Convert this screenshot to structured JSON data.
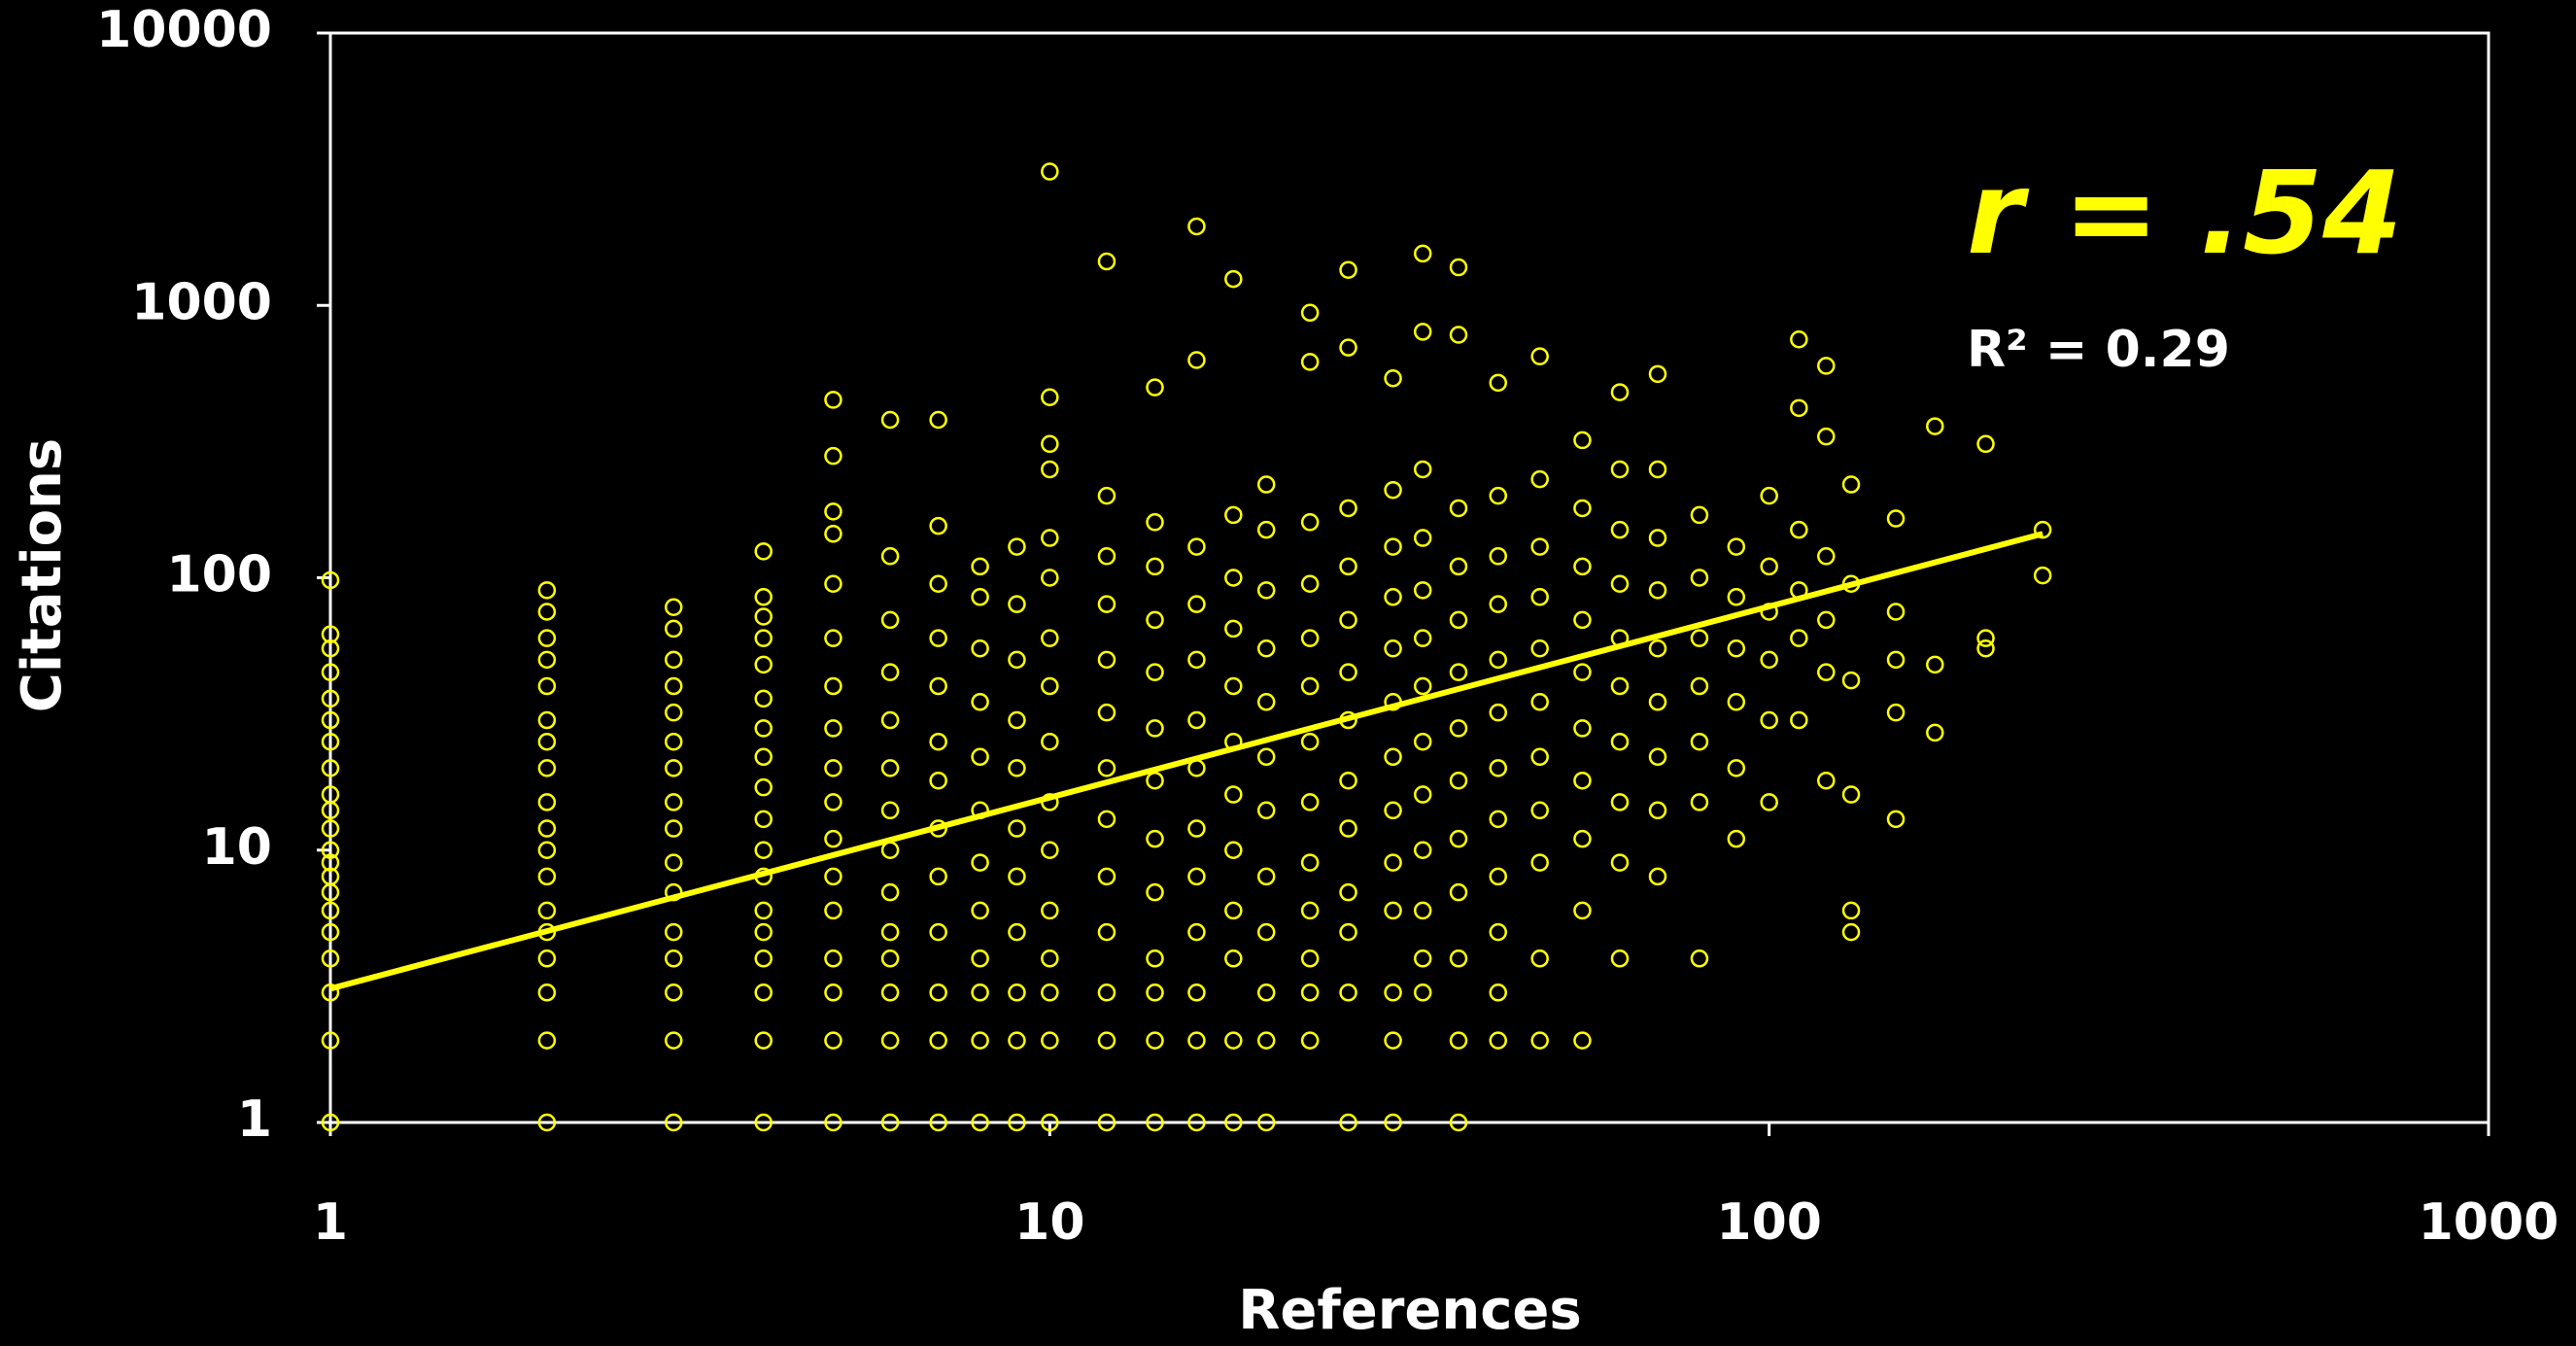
{
  "chart_data": {
    "type": "scatter",
    "x_label": "References",
    "y_label": "Citations",
    "annotations": [
      "r = .54",
      "R² = 0.29"
    ],
    "xscale": "log",
    "yscale": "log",
    "xlim": [
      1,
      1000
    ],
    "ylim": [
      1,
      10000
    ],
    "xticks": [
      1,
      10,
      100,
      1000
    ],
    "yticks": [
      1,
      10,
      100,
      1000,
      10000
    ],
    "color": "#ffff00",
    "x": [
      1,
      1,
      1,
      1,
      1,
      1,
      1,
      1,
      1,
      1,
      1,
      1,
      1,
      1,
      1,
      1,
      1,
      1,
      1,
      1,
      1,
      2,
      2,
      2,
      2,
      2,
      2,
      2,
      2,
      2,
      2,
      2,
      2,
      2,
      2,
      2,
      2,
      2,
      2,
      3,
      3,
      3,
      3,
      3,
      3,
      3,
      3,
      3,
      3,
      3,
      3,
      3,
      3,
      3,
      3,
      4,
      4,
      4,
      4,
      4,
      4,
      4,
      4,
      4,
      4,
      4,
      4,
      4,
      4,
      4,
      4,
      4,
      4,
      5,
      5,
      5,
      5,
      5,
      5,
      5,
      5,
      5,
      5,
      5,
      5,
      5,
      5,
      5,
      5,
      5,
      6,
      6,
      6,
      6,
      6,
      6,
      6,
      6,
      6,
      6,
      6,
      6,
      6,
      6,
      7,
      7,
      7,
      7,
      7,
      7,
      7,
      7,
      7,
      7,
      7,
      7,
      7,
      8,
      8,
      8,
      8,
      8,
      8,
      8,
      8,
      8,
      8,
      8,
      8,
      9,
      9,
      9,
      9,
      9,
      9,
      9,
      9,
      9,
      9,
      9,
      10,
      10,
      10,
      10,
      10,
      10,
      10,
      10,
      10,
      10,
      10,
      10,
      10,
      10,
      10,
      10,
      12,
      12,
      12,
      12,
      12,
      12,
      12,
      12,
      12,
      12,
      12,
      12,
      12,
      14,
      14,
      14,
      14,
      14,
      14,
      14,
      14,
      14,
      14,
      14,
      14,
      14,
      16,
      16,
      16,
      16,
      16,
      16,
      16,
      16,
      16,
      16,
      16,
      16,
      16,
      18,
      18,
      18,
      18,
      18,
      18,
      18,
      18,
      18,
      18,
      18,
      18,
      20,
      20,
      20,
      20,
      20,
      20,
      20,
      20,
      20,
      20,
      20,
      20,
      23,
      23,
      23,
      23,
      23,
      23,
      23,
      23,
      23,
      23,
      23,
      23,
      23,
      26,
      26,
      26,
      26,
      26,
      26,
      26,
      26,
      26,
      26,
      26,
      26,
      26,
      30,
      30,
      30,
      30,
      30,
      30,
      30,
      30,
      30,
      30,
      30,
      30,
      30,
      33,
      33,
      33,
      33,
      33,
      33,
      33,
      33,
      33,
      33,
      33,
      33,
      33,
      37,
      37,
      37,
      37,
      37,
      37,
      37,
      37,
      37,
      37,
      37,
      37,
      37,
      42,
      42,
      42,
      42,
      42,
      42,
      42,
      42,
      42,
      42,
      42,
      42,
      48,
      48,
      48,
      48,
      48,
      48,
      48,
      48,
      48,
      48,
      48,
      55,
      55,
      55,
      55,
      55,
      55,
      55,
      55,
      55,
      55,
      62,
      62,
      62,
      62,
      62,
      62,
      62,
      62,
      62,
      62,
      70,
      70,
      70,
      70,
      70,
      70,
      70,
      70,
      70,
      80,
      80,
      80,
      80,
      80,
      80,
      80,
      90,
      90,
      90,
      90,
      90,
      90,
      100,
      100,
      100,
      100,
      100,
      100,
      110,
      110,
      110,
      110,
      110,
      110,
      120,
      120,
      120,
      120,
      120,
      120,
      130,
      130,
      130,
      130,
      130,
      130,
      150,
      150,
      150,
      150,
      150,
      170,
      170,
      170,
      200,
      200,
      200,
      240,
      240
    ],
    "values": [
      1,
      2,
      3,
      4,
      5,
      6,
      7,
      8,
      9,
      10,
      12,
      14,
      16,
      20,
      25,
      30,
      36,
      45,
      55,
      62,
      98,
      1,
      2,
      3,
      4,
      5,
      6,
      8,
      10,
      12,
      15,
      20,
      25,
      30,
      40,
      50,
      60,
      75,
      90,
      1,
      2,
      3,
      4,
      5,
      7,
      9,
      12,
      15,
      20,
      25,
      32,
      40,
      50,
      65,
      78,
      1,
      2,
      3,
      4,
      5,
      6,
      8,
      10,
      13,
      17,
      22,
      28,
      36,
      48,
      60,
      72,
      85,
      125,
      1,
      2,
      3,
      4,
      6,
      8,
      11,
      15,
      20,
      28,
      40,
      60,
      95,
      145,
      175,
      280,
      450,
      1,
      2,
      3,
      4,
      5,
      7,
      10,
      14,
      20,
      30,
      45,
      70,
      120,
      380,
      1,
      2,
      3,
      5,
      8,
      12,
      18,
      25,
      40,
      60,
      95,
      155,
      380,
      1,
      2,
      3,
      4,
      6,
      9,
      14,
      22,
      35,
      55,
      85,
      110,
      1,
      2,
      3,
      5,
      8,
      12,
      20,
      30,
      50,
      80,
      130,
      1,
      2,
      3,
      4,
      6,
      10,
      15,
      25,
      40,
      60,
      100,
      140,
      250,
      310,
      460,
      3100,
      1,
      2,
      3,
      5,
      8,
      13,
      20,
      32,
      50,
      80,
      120,
      200,
      1450,
      1,
      2,
      3,
      4,
      7,
      11,
      18,
      28,
      45,
      70,
      110,
      160,
      500,
      1,
      2,
      3,
      5,
      8,
      12,
      20,
      30,
      50,
      80,
      130,
      1950,
      630,
      1,
      2,
      4,
      6,
      10,
      16,
      25,
      40,
      65,
      100,
      170,
      1250,
      1,
      2,
      3,
      5,
      8,
      14,
      22,
      35,
      55,
      90,
      150,
      220,
      2,
      3,
      4,
      6,
      9,
      15,
      25,
      40,
      60,
      95,
      160,
      940,
      620,
      1,
      3,
      5,
      7,
      12,
      18,
      30,
      45,
      70,
      110,
      180,
      1350,
      700,
      1,
      2,
      3,
      6,
      9,
      14,
      22,
      35,
      55,
      85,
      130,
      210,
      540,
      3,
      4,
      6,
      10,
      16,
      25,
      40,
      60,
      90,
      140,
      250,
      1550,
      800,
      1,
      2,
      4,
      7,
      11,
      18,
      28,
      45,
      70,
      110,
      180,
      1380,
      780,
      2,
      3,
      5,
      8,
      13,
      20,
      32,
      50,
      80,
      120,
      200,
      520,
      2,
      4,
      9,
      14,
      22,
      35,
      55,
      85,
      130,
      230,
      650,
      2,
      6,
      11,
      18,
      28,
      45,
      70,
      110,
      180,
      320,
      4,
      9,
      15,
      25,
      40,
      60,
      95,
      150,
      250,
      480,
      8,
      14,
      22,
      35,
      55,
      90,
      140,
      250,
      560,
      4,
      15,
      25,
      40,
      60,
      100,
      170,
      11,
      20,
      35,
      55,
      85,
      130,
      15,
      30,
      50,
      75,
      110,
      200,
      30,
      60,
      90,
      150,
      420,
      750,
      18,
      45,
      70,
      120,
      330,
      600,
      5,
      6,
      16,
      42,
      95,
      220,
      13,
      32,
      50,
      75,
      165,
      27,
      48,
      360,
      55,
      60,
      310,
      102,
      150
    ],
    "trendline": {
      "x": [
        1,
        240
      ],
      "values": [
        3.1,
        145
      ],
      "color": "#ffff00"
    }
  }
}
